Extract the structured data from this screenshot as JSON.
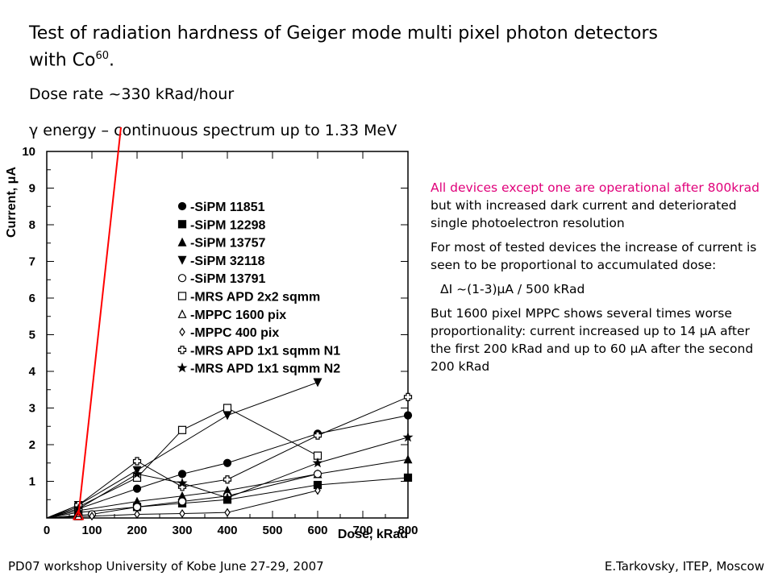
{
  "title": {
    "main": "Test of radiation hardness of Geiger mode multi pixel photon detectors with Co",
    "sup": "60",
    "end": "."
  },
  "dose_rate": "Dose rate ~330 kRad/hour",
  "gamma_line": {
    "symbol": "γ",
    "text": " energy  – continuous spectrum up to 1.33 MeV"
  },
  "notes": {
    "p1_highlight": "All devices except one are operational after 800krad",
    "p1_rest": "but  with increased dark current and deteriorated single photoelectron resolution",
    "p2": "For most of tested devices the increase of current is seen to be proportional to accumulated dose:",
    "formula": "ΔI ~(1-3)μA / 500 kRad",
    "p3": "But 1600 pixel MPPC shows several times worse proportionality: current increased up to 14 μA after the first 200 kRad and up to 60 μA after the second 200 kRad"
  },
  "footer": {
    "left": "PD07 workshop   University of Kobe   June  27-29,  2007",
    "right": "E.Tarkovsky, ITEP, Moscow"
  },
  "chart_data": {
    "type": "scatter",
    "xlabel": "Dose, kRad",
    "ylabel": "Current, μA",
    "xlim": [
      0,
      800
    ],
    "ylim": [
      0,
      10
    ],
    "xticks": [
      0,
      100,
      200,
      300,
      400,
      500,
      600,
      700,
      800
    ],
    "yticks": [
      1,
      2,
      3,
      4,
      5,
      6,
      7,
      8,
      9,
      10
    ],
    "series": [
      {
        "name": "-SiPM 11851",
        "marker": "circle-filled",
        "x": [
          0,
          70,
          200,
          300,
          400,
          600,
          800
        ],
        "y": [
          0,
          0.25,
          0.8,
          1.2,
          1.5,
          2.3,
          2.8
        ]
      },
      {
        "name": "-SiPM 12298",
        "marker": "square-filled",
        "x": [
          0,
          70,
          200,
          300,
          400,
          600,
          800
        ],
        "y": [
          0,
          0.15,
          0.3,
          0.4,
          0.5,
          0.9,
          1.1
        ]
      },
      {
        "name": "-SiPM 13757",
        "marker": "triangle-up-filled",
        "x": [
          0,
          70,
          200,
          300,
          400,
          600,
          800
        ],
        "y": [
          0,
          0.2,
          0.45,
          0.6,
          0.75,
          1.2,
          1.6
        ]
      },
      {
        "name": "-SiPM 32118",
        "marker": "triangle-down-filled",
        "x": [
          0,
          70,
          200,
          400,
          600
        ],
        "y": [
          0,
          0.35,
          1.3,
          2.8,
          3.7
        ]
      },
      {
        "name": "-SiPM 13791",
        "marker": "circle-open",
        "x": [
          0,
          100,
          200,
          300,
          400,
          600
        ],
        "y": [
          0,
          0.1,
          0.3,
          0.45,
          0.6,
          1.2
        ]
      },
      {
        "name": "-MRS APD 2x2 sqmm",
        "marker": "square-open",
        "x": [
          0,
          70,
          200,
          300,
          400,
          600
        ],
        "y": [
          0,
          0.3,
          1.1,
          2.4,
          3.0,
          1.7
        ]
      },
      {
        "name": "-MPPC 1600 pix",
        "marker": "triangle-up-open",
        "x": [
          0,
          70
        ],
        "y": [
          0,
          0.05
        ]
      },
      {
        "name": "-MPPC 400 pix",
        "marker": "diamond-open",
        "x": [
          0,
          100,
          200,
          300,
          400,
          600
        ],
        "y": [
          0,
          0.05,
          0.1,
          0.12,
          0.15,
          0.75
        ]
      },
      {
        "name": "-MRS APD 1x1 sqmm N1",
        "marker": "cross-open",
        "x": [
          0,
          70,
          200,
          300,
          400,
          600,
          800
        ],
        "y": [
          0,
          0.35,
          1.55,
          0.85,
          1.05,
          2.25,
          3.3
        ]
      },
      {
        "name": "-MRS APD 1x1 sqmm N2",
        "marker": "star",
        "x": [
          0,
          70,
          200,
          300,
          400,
          600,
          800
        ],
        "y": [
          0,
          0.25,
          1.2,
          0.95,
          0.55,
          1.5,
          2.2
        ]
      }
    ]
  },
  "colors": {
    "mppc1600_line": "#ff0000",
    "highlight_text": "#e0007a"
  }
}
